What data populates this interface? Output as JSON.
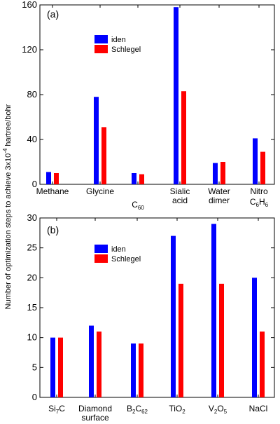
{
  "chart_data": [
    {
      "type": "bar",
      "panel_label": "(a)",
      "categories": [
        {
          "lines": [
            "Methane"
          ]
        },
        {
          "lines": [
            "Glycine"
          ]
        },
        {
          "lines": [
            "C60"
          ],
          "sub_label": {
            "base": "C",
            "sub": "60"
          }
        },
        {
          "lines": [
            "Sialic",
            "acid"
          ]
        },
        {
          "lines": [
            "Water",
            "dimer"
          ]
        },
        {
          "lines": [
            "Nitro",
            "C6H6"
          ],
          "sub_label_line2": [
            {
              "t": "C"
            },
            {
              "t": "6",
              "sub": true
            },
            {
              "t": "H"
            },
            {
              "t": "6",
              "sub": true
            }
          ]
        }
      ],
      "series": [
        {
          "name": "iden",
          "color": "#0000ff",
          "values": [
            11,
            78,
            10,
            158,
            19,
            41
          ]
        },
        {
          "name": "Schlegel",
          "color": "#ff0000",
          "values": [
            10,
            51,
            9,
            83,
            20,
            29
          ]
        }
      ],
      "ylim": [
        0,
        160
      ],
      "yticks": [
        "0",
        "40",
        "80",
        "120",
        "160"
      ],
      "legend_position": "upper-left",
      "grid": false
    },
    {
      "type": "bar",
      "panel_label": "(b)",
      "categories": [
        {
          "lines": [
            "Si7C"
          ],
          "rich": [
            {
              "t": "Si"
            },
            {
              "t": "7",
              "sub": true
            },
            {
              "t": "C"
            }
          ]
        },
        {
          "lines": [
            "Diamond",
            "surface"
          ]
        },
        {
          "lines": [
            "B2C62"
          ],
          "rich": [
            {
              "t": "B"
            },
            {
              "t": "2",
              "sub": true
            },
            {
              "t": "C"
            },
            {
              "t": "62",
              "sub": true
            }
          ]
        },
        {
          "lines": [
            "TiO2"
          ],
          "rich": [
            {
              "t": "TiO"
            },
            {
              "t": "2",
              "sub": true
            }
          ]
        },
        {
          "lines": [
            "V2O5"
          ],
          "rich": [
            {
              "t": "V"
            },
            {
              "t": "2",
              "sub": true
            },
            {
              "t": "O"
            },
            {
              "t": "5",
              "sub": true
            }
          ]
        },
        {
          "lines": [
            "NaCl"
          ]
        }
      ],
      "series": [
        {
          "name": "iden",
          "color": "#0000ff",
          "values": [
            10,
            12,
            9,
            27,
            29,
            20
          ]
        },
        {
          "name": "Schlegel",
          "color": "#ff0000",
          "values": [
            10,
            11,
            9,
            19,
            19,
            11
          ]
        }
      ],
      "ylim": [
        0,
        30
      ],
      "yticks": [
        "0",
        "5",
        "10",
        "15",
        "20",
        "25",
        "30"
      ],
      "legend_position": "upper-left",
      "grid": false
    }
  ],
  "ylabel": {
    "main": "Number of optimization steps to achieve 3x10",
    "sup": "-4",
    "tail": " hartree/bohr"
  }
}
